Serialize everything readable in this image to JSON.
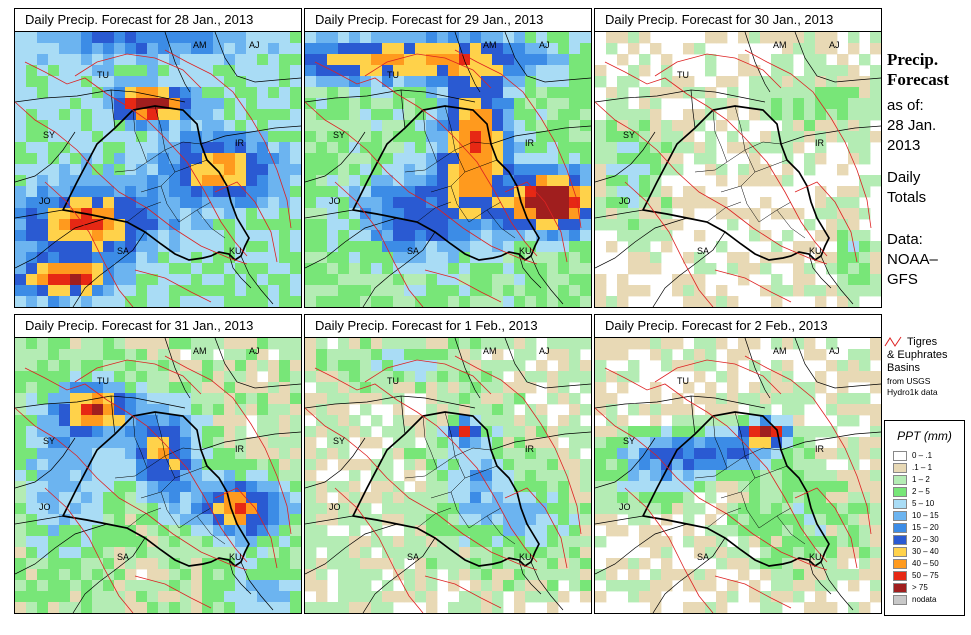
{
  "panels": [
    {
      "title": "Daily Precip. Forecast for  28 Jan., 2013"
    },
    {
      "title": "Daily Precip. Forecast for  29 Jan., 2013"
    },
    {
      "title": "Daily Precip. Forecast for  30 Jan., 2013"
    },
    {
      "title": "Daily Precip. Forecast for  31 Jan., 2013"
    },
    {
      "title": "Daily Precip. Forecast for  1 Feb., 2013"
    },
    {
      "title": "Daily Precip. Forecast for  2 Feb., 2013"
    }
  ],
  "country_labels": [
    "AM",
    "AJ",
    "TU",
    "SY",
    "IR",
    "JO",
    "SA",
    "KU"
  ],
  "sidebar": {
    "title_line1": "Precip.",
    "title_line2": "Forecast",
    "asof_line1": "as of:",
    "asof_line2": "28 Jan.",
    "asof_line3": "2013",
    "totals_line1": "Daily",
    "totals_line2": "Totals",
    "data_line1": "Data:",
    "data_line2": "NOAA–",
    "data_line3": "GFS"
  },
  "basin_legend": {
    "label_line1": "Tigres",
    "label_line2": "& Euphrates",
    "label_line3": "Basins",
    "source_line1": "from USGS",
    "source_line2": "Hydro1k data",
    "color": "#dd2222"
  },
  "legend": {
    "title": "PPT (mm)",
    "entries": [
      {
        "label": "0 – .1",
        "color": "#ffffff"
      },
      {
        "label": ".1 – 1",
        "color": "#e8d9b5"
      },
      {
        "label": "1 – 2",
        "color": "#b4ecb4"
      },
      {
        "label": "2 – 5",
        "color": "#78e678"
      },
      {
        "label": "5 – 10",
        "color": "#a9dcf5"
      },
      {
        "label": "10 – 15",
        "color": "#6cb4f0"
      },
      {
        "label": "15 – 20",
        "color": "#3c8ce6"
      },
      {
        "label": "20 – 30",
        "color": "#2a5ad2"
      },
      {
        "label": "30 – 40",
        "color": "#ffd24a"
      },
      {
        "label": "40 – 50",
        "color": "#ff9a1e"
      },
      {
        "label": "50 – 75",
        "color": "#e62814"
      },
      {
        "label": "> 75",
        "color": "#a01e1e"
      },
      {
        "label": "nodata",
        "color": "#c8c8c8"
      }
    ]
  }
}
